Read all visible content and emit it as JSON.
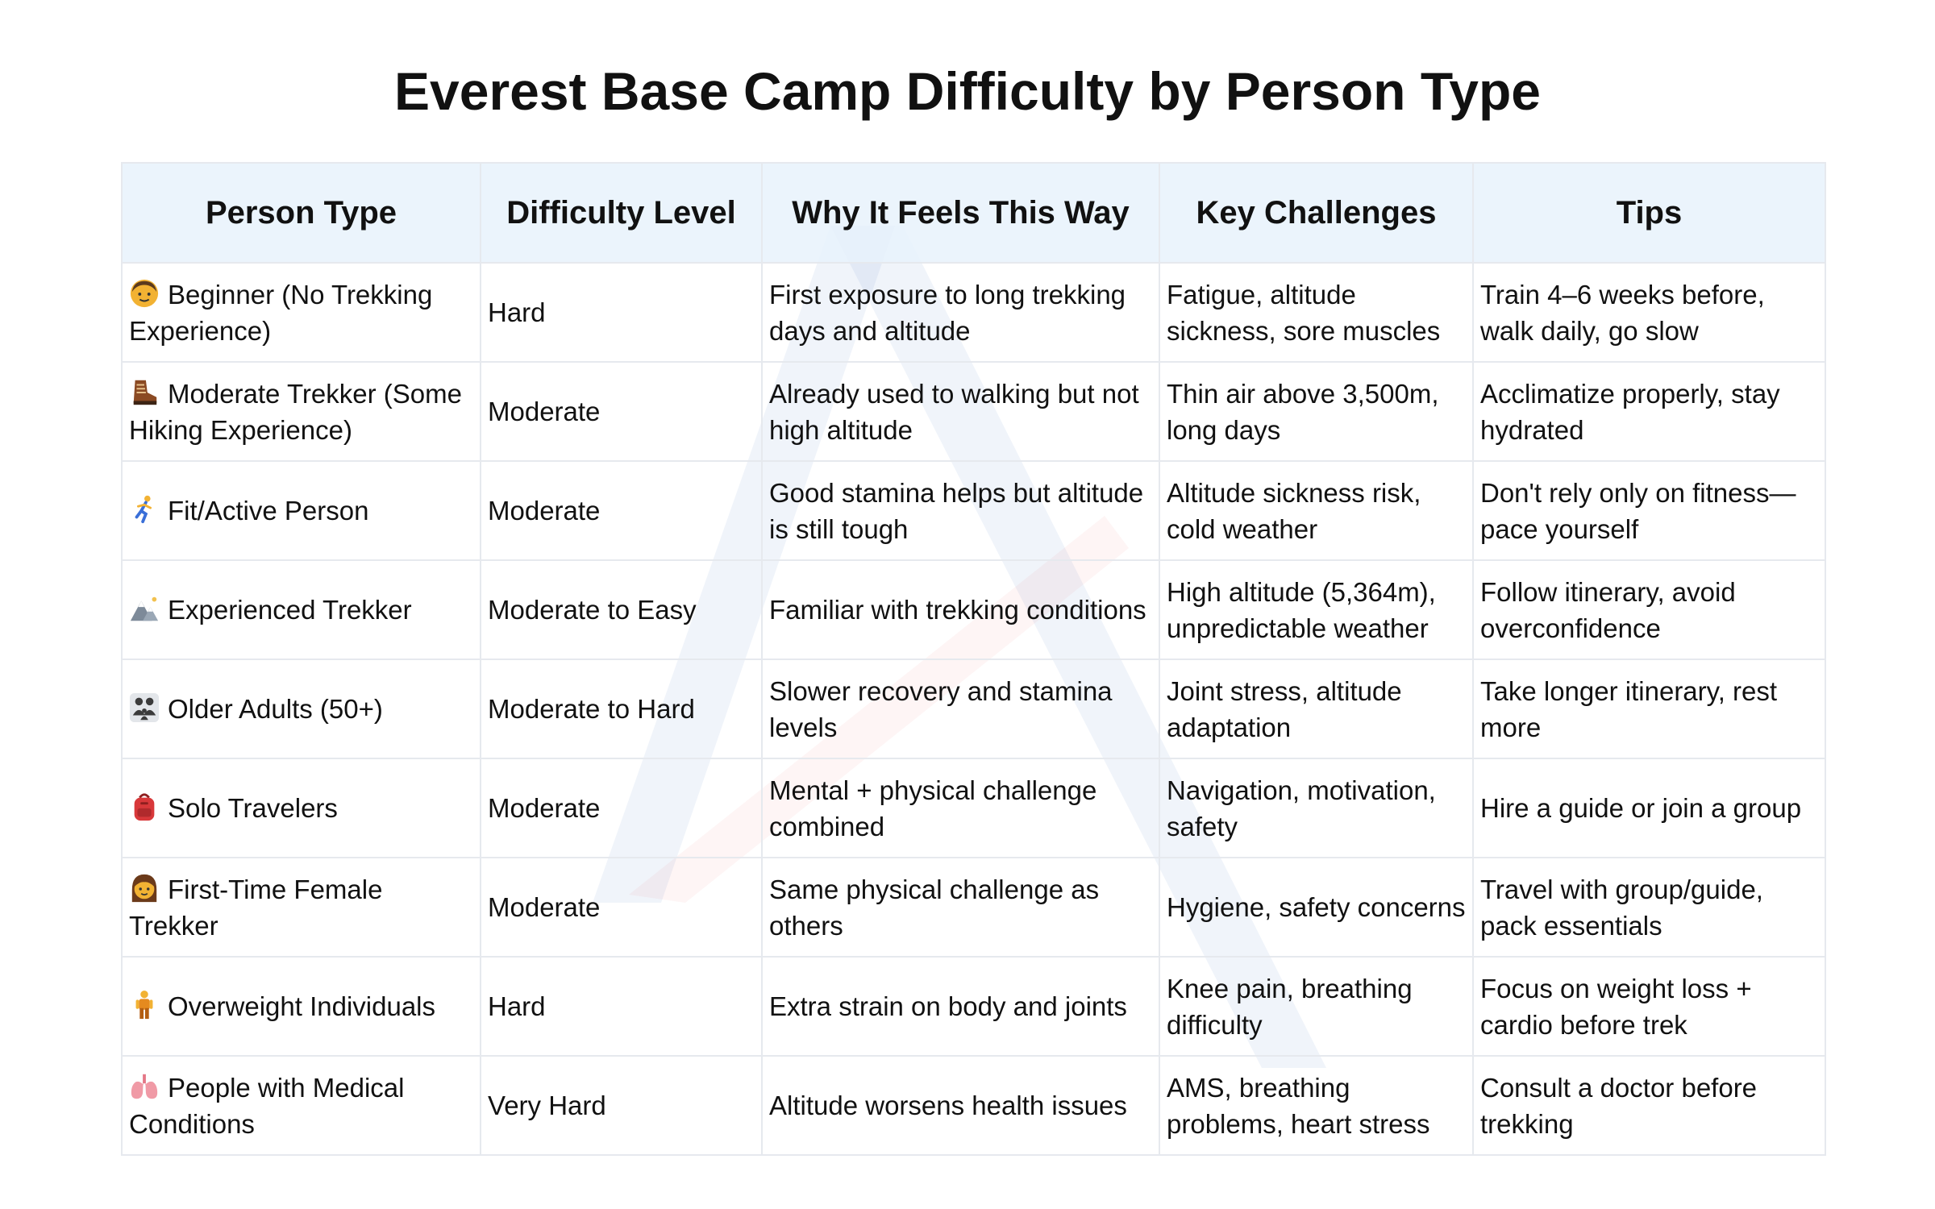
{
  "title": "Everest Base Camp Difficulty by Person Type",
  "columns": [
    "Person Type",
    "Difficulty Level",
    "Why It Feels This Way",
    "Key Challenges",
    "Tips"
  ],
  "rows": [
    {
      "icon": "person-icon",
      "person": "Beginner (No Trekking Experience)",
      "difficulty": "Hard",
      "why": "First exposure to long trekking days and altitude",
      "challenges": "Fatigue, altitude sickness, sore muscles",
      "tips": "Train 4–6 weeks before, walk daily, go slow"
    },
    {
      "icon": "hiking-boot-icon",
      "person": "Moderate Trekker (Some Hiking Experience)",
      "difficulty": "Moderate",
      "why": "Already used to walking but not high altitude",
      "challenges": "Thin air above 3,500m, long days",
      "tips": "Acclimatize properly, stay hydrated"
    },
    {
      "icon": "runner-icon",
      "person": "Fit/Active Person",
      "difficulty": "Moderate",
      "why": "Good stamina helps but altitude is still tough",
      "challenges": "Altitude sickness risk, cold weather",
      "tips": "Don't rely only on fitness—pace yourself"
    },
    {
      "icon": "mountain-icon",
      "person": "Experienced Trekker",
      "difficulty": "Moderate to Easy",
      "why": "Familiar with trekking conditions",
      "challenges": "High altitude (5,364m), unpredictable weather",
      "tips": "Follow itinerary, avoid overconfidence"
    },
    {
      "icon": "family-icon",
      "person": "Older Adults (50+)",
      "difficulty": "Moderate to Hard",
      "why": "Slower recovery and stamina levels",
      "challenges": "Joint stress, altitude adaptation",
      "tips": "Take longer itinerary, rest more"
    },
    {
      "icon": "backpack-icon",
      "person": "Solo Travelers",
      "difficulty": "Moderate",
      "why": "Mental + physical challenge combined",
      "challenges": "Navigation, motivation, safety",
      "tips": "Hire a guide or join a group"
    },
    {
      "icon": "woman-icon",
      "person": "First-Time Female Trekker",
      "difficulty": "Moderate",
      "why": "Same physical challenge as others",
      "challenges": "Hygiene, safety concerns",
      "tips": "Travel with group/guide, pack essentials"
    },
    {
      "icon": "standing-person-icon",
      "person": "Overweight Individuals",
      "difficulty": "Hard",
      "why": "Extra strain on body and joints",
      "challenges": "Knee pain, breathing difficulty",
      "tips": "Focus on weight loss + cardio before trek"
    },
    {
      "icon": "lungs-icon",
      "person": "People with Medical Conditions",
      "difficulty": "Very Hard",
      "why": "Altitude worsens health issues",
      "challenges": "AMS, breathing problems, heart stress",
      "tips": "Consult a doctor before trekking"
    }
  ]
}
